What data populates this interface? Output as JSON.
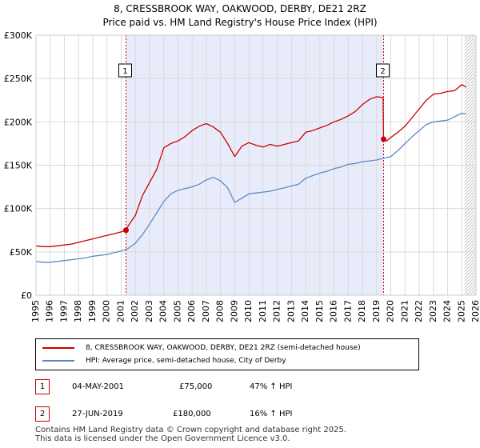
{
  "header": {
    "title_line1": "8, CRESSBROOK WAY, OAKWOOD, DERBY, DE21 2RZ",
    "title_line2": "Price paid vs. HM Land Registry's House Price Index (HPI)"
  },
  "colors": {
    "property": "#cc0000",
    "hpi": "#5b8ac4",
    "shade": "#e8ecfa",
    "grid": "#d9d9d9",
    "hatch": "#aaaaaa"
  },
  "chart_data": {
    "type": "line",
    "title": "8, CRESSBROOK WAY, OAKWOOD, DERBY, DE21 2RZ",
    "subtitle": "Price paid vs. HM Land Registry's House Price Index (HPI)",
    "xlabel": "",
    "ylabel": "",
    "xlim": [
      1995,
      2026
    ],
    "ylim": [
      0,
      300000
    ],
    "y_ticks": [
      0,
      50000,
      100000,
      150000,
      200000,
      250000,
      300000
    ],
    "y_tick_labels": [
      "£0",
      "£50K",
      "£100K",
      "£150K",
      "£200K",
      "£250K",
      "£300K"
    ],
    "x_ticks": [
      1995,
      1996,
      1997,
      1998,
      1999,
      2000,
      2001,
      2002,
      2003,
      2004,
      2005,
      2006,
      2007,
      2008,
      2009,
      2010,
      2011,
      2012,
      2013,
      2014,
      2015,
      2016,
      2017,
      2018,
      2019,
      2020,
      2021,
      2022,
      2023,
      2024,
      2025,
      2026
    ],
    "x_tick_labels": [
      "1995",
      "1996",
      "1997",
      "1998",
      "1999",
      "2000",
      "2001",
      "2002",
      "2003",
      "2004",
      "2005",
      "2006",
      "2007",
      "2008",
      "2009",
      "2010",
      "2011",
      "2012",
      "2013",
      "2014",
      "2015",
      "2016",
      "2017",
      "2018",
      "2019",
      "2020",
      "2021",
      "2022",
      "2023",
      "2024",
      "2025",
      "2026"
    ],
    "grid": true,
    "shaded_region": [
      2001.34,
      2019.49
    ],
    "hatched_region_start": 2025.2,
    "series": [
      {
        "name": "8, CRESSBROOK WAY, OAKWOOD, DERBY, DE21 2RZ (semi-detached house)",
        "color": "#cc0000",
        "x": [
          1995,
          1995.5,
          1996,
          1996.5,
          1997,
          1997.5,
          1998,
          1998.5,
          1999,
          1999.5,
          2000,
          2000.5,
          2001,
          2001.34,
          2001.5,
          2002,
          2002.5,
          2003,
          2003.5,
          2004,
          2004.5,
          2005,
          2005.5,
          2006,
          2006.5,
          2007,
          2007.5,
          2008,
          2008.5,
          2009,
          2009.5,
          2010,
          2010.5,
          2011,
          2011.5,
          2012,
          2012.5,
          2013,
          2013.5,
          2014,
          2014.5,
          2015,
          2015.5,
          2016,
          2016.5,
          2017,
          2017.5,
          2018,
          2018.5,
          2019,
          2019.45,
          2019.49,
          2019.7,
          2020,
          2020.5,
          2021,
          2021.5,
          2022,
          2022.5,
          2023,
          2023.5,
          2024,
          2024.5,
          2025,
          2025.3
        ],
        "values": [
          57000,
          56000,
          56000,
          57000,
          58000,
          59000,
          61000,
          63000,
          65000,
          67000,
          69000,
          71000,
          73000,
          75000,
          80000,
          92000,
          115000,
          130000,
          145000,
          170000,
          175000,
          178000,
          183000,
          190000,
          195000,
          198000,
          194000,
          188000,
          175000,
          160000,
          172000,
          176000,
          173000,
          171000,
          174000,
          172000,
          174000,
          176000,
          178000,
          188000,
          190000,
          193000,
          196000,
          200000,
          203000,
          207000,
          212000,
          220000,
          226000,
          229000,
          228000,
          180000,
          178000,
          182000,
          188000,
          195000,
          205000,
          215000,
          225000,
          232000,
          233000,
          235000,
          236000,
          243000,
          240000
        ]
      },
      {
        "name": "HPI: Average price, semi-detached house, City of Derby",
        "color": "#5b8ac4",
        "x": [
          1995,
          1995.5,
          1996,
          1996.5,
          1997,
          1997.5,
          1998,
          1998.5,
          1999,
          1999.5,
          2000,
          2000.5,
          2001,
          2001.5,
          2002,
          2002.5,
          2003,
          2003.5,
          2004,
          2004.5,
          2005,
          2005.5,
          2006,
          2006.5,
          2007,
          2007.5,
          2008,
          2008.5,
          2009,
          2009.5,
          2010,
          2010.5,
          2011,
          2011.5,
          2012,
          2012.5,
          2013,
          2013.5,
          2014,
          2014.5,
          2015,
          2015.5,
          2016,
          2016.5,
          2017,
          2017.5,
          2018,
          2018.5,
          2019,
          2019.5,
          2020,
          2020.5,
          2021,
          2021.5,
          2022,
          2022.5,
          2023,
          2023.5,
          2024,
          2024.5,
          2025,
          2025.3
        ],
        "values": [
          39000,
          38000,
          38000,
          39000,
          40000,
          41000,
          42000,
          43000,
          45000,
          46000,
          47000,
          49000,
          51000,
          54000,
          60000,
          70000,
          82000,
          95000,
          108000,
          117000,
          121000,
          123000,
          125000,
          128000,
          133000,
          136000,
          132000,
          124000,
          107000,
          112000,
          117000,
          118000,
          119000,
          120000,
          122000,
          124000,
          126000,
          128000,
          135000,
          138000,
          141000,
          143000,
          146000,
          148000,
          151000,
          152000,
          154000,
          155000,
          156000,
          158000,
          160000,
          167000,
          175000,
          183000,
          190000,
          197000,
          200000,
          201000,
          202000,
          206000,
          210000,
          209000
        ]
      }
    ],
    "annotations": [
      {
        "label": "1",
        "x": 2001.34,
        "y": 75000
      },
      {
        "label": "2",
        "x": 2019.49,
        "y": 180000
      }
    ]
  },
  "legend": {
    "property_label": "8, CRESSBROOK WAY, OAKWOOD, DERBY, DE21 2RZ (semi-detached house)",
    "hpi_label": "HPI: Average price, semi-detached house, City of Derby"
  },
  "transactions": [
    {
      "num": "1",
      "date": "04-MAY-2001",
      "price": "£75,000",
      "hpi_change": "47% ↑ HPI"
    },
    {
      "num": "2",
      "date": "27-JUN-2019",
      "price": "£180,000",
      "hpi_change": "16% ↑ HPI"
    }
  ],
  "footer": {
    "line1": "Contains HM Land Registry data © Crown copyright and database right 2025.",
    "line2": "This data is licensed under the Open Government Licence v3.0."
  }
}
